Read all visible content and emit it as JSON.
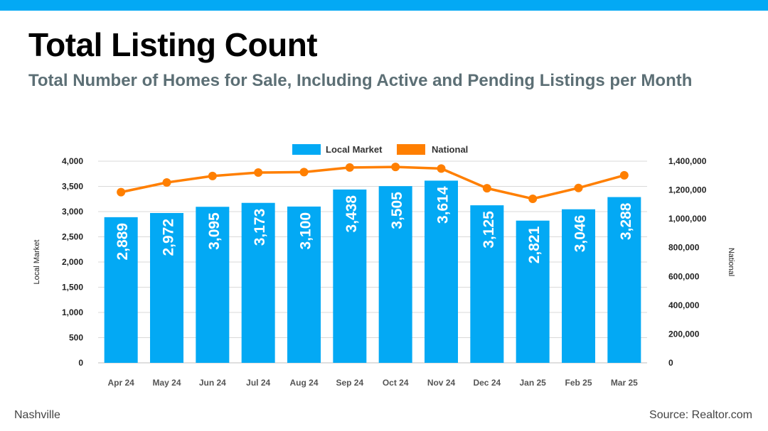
{
  "colors": {
    "accent_bar": "#03a9f4",
    "bar": "#03a9f4",
    "line": "#ff7f00",
    "title": "#000000",
    "subtitle": "#5c6f75",
    "grid": "#d9d9d9"
  },
  "header": {
    "title": "Total Listing Count",
    "subtitle": "Total Number of Homes for Sale, Including Active and Pending Listings per Month"
  },
  "footer": {
    "location": "Nashville",
    "source": "Source: Realtor.com"
  },
  "chart_data": {
    "type": "bar",
    "combo": "bar+line",
    "categories": [
      "Apr 24",
      "May 24",
      "Jun 24",
      "Jul 24",
      "Aug 24",
      "Sep 24",
      "Oct 24",
      "Nov 24",
      "Dec 24",
      "Jan 25",
      "Feb 25",
      "Mar 25"
    ],
    "series": [
      {
        "name": "Local Market",
        "type": "bar",
        "axis": "left",
        "values": [
          2889,
          2972,
          3095,
          3173,
          3100,
          3438,
          3505,
          3614,
          3125,
          2821,
          3046,
          3288
        ],
        "labels": [
          "2,889",
          "2,972",
          "3,095",
          "3,173",
          "3,100",
          "3,438",
          "3,505",
          "3,614",
          "3,125",
          "2,821",
          "3,046",
          "3,288"
        ]
      },
      {
        "name": "National",
        "type": "line",
        "axis": "right",
        "values": [
          1185000,
          1252000,
          1297000,
          1321000,
          1324000,
          1356000,
          1360000,
          1349000,
          1212000,
          1139000,
          1214000,
          1302000
        ]
      }
    ],
    "ylabel": "Local Market",
    "ylabel_right": "National",
    "ylim": [
      0,
      4000
    ],
    "ylim_right": [
      0,
      1400000
    ],
    "yticks": [
      "0",
      "500",
      "1,000",
      "1,500",
      "2,000",
      "2,500",
      "3,000",
      "3,500",
      "4,000"
    ],
    "yticks_right": [
      "0",
      "200,000",
      "400,000",
      "600,000",
      "800,000",
      "1,000,000",
      "1,200,000",
      "1,400,000"
    ],
    "grid": true,
    "legend": "top-center"
  }
}
